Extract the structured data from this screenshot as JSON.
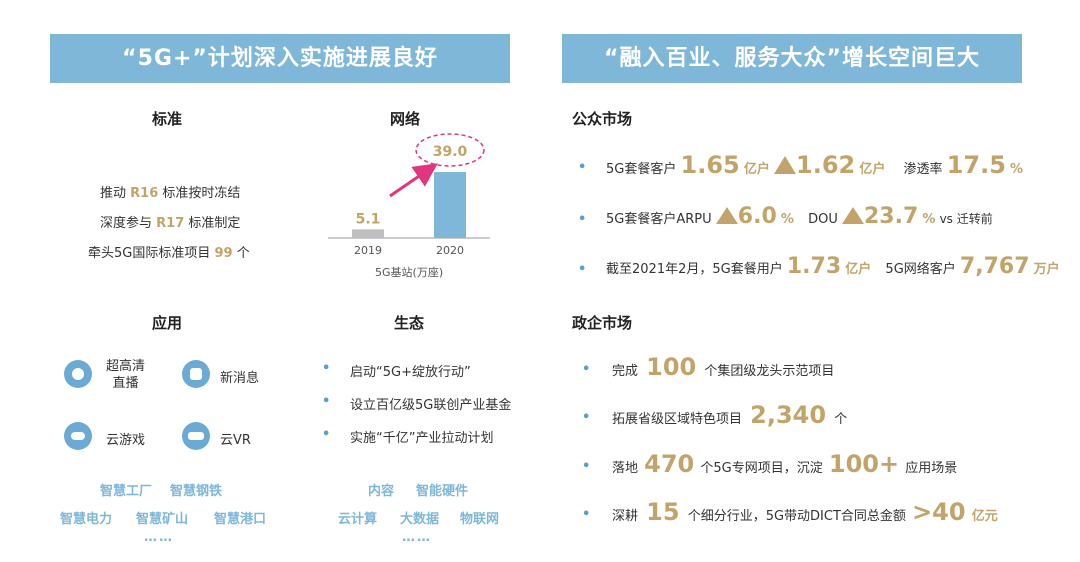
{
  "left_banner": "“5G+”计划深入实施进展良好",
  "right_banner": "“融入百业、服务大众”增长空间巨大",
  "standard": {
    "title": "标准",
    "line1_pre": "推动 ",
    "line1_hl": "R16",
    "line1_post": " 标准按时冻结",
    "line2_pre": "深度参与 ",
    "line2_hl": "R17",
    "line2_post": " 标准制定",
    "line3_pre": "牵头5G国际标准项目 ",
    "line3_hl": "99",
    "line3_post": " 个"
  },
  "network": {
    "title": "网络",
    "xlabel": "5G基站(万座)"
  },
  "chart_data": {
    "type": "bar",
    "categories": [
      "2019",
      "2020"
    ],
    "values": [
      5.1,
      39.0
    ],
    "value_labels": [
      "5.1",
      "39.0"
    ],
    "xlabel": "5G基站(万座)",
    "colors": [
      "#bfbfbf",
      "#7fb7d9"
    ]
  },
  "application": {
    "title": "应用",
    "items": [
      {
        "label1": "超高清",
        "label2": "直播",
        "icon": "live-video-icon"
      },
      {
        "label1": "新消息",
        "label2": "",
        "icon": "message-icon"
      },
      {
        "label1": "云游戏",
        "label2": "",
        "icon": "gamepad-icon"
      },
      {
        "label1": "云VR",
        "label2": "",
        "icon": "vr-headset-icon"
      }
    ],
    "tags_row1": [
      "智慧工厂",
      "智慧钢铁"
    ],
    "tags_row2": [
      "智慧电力",
      "智慧矿山",
      "智慧港口"
    ],
    "more": "……"
  },
  "ecosystem": {
    "title": "生态",
    "items": [
      "启动“5G+绽放行动”",
      "设立百亿级5G联创产业基金",
      "实施“千亿”产业拉动计划"
    ],
    "tags_row1": [
      "内容",
      "智能硬件"
    ],
    "tags_row2": [
      "云计算",
      "大数据",
      "物联网"
    ],
    "more": "……"
  },
  "public_market": {
    "title": "公众市场",
    "r1": {
      "l1": "5G套餐客户",
      "v1": "1.65",
      "u1": "亿户",
      "v2": "1.62",
      "u2": "亿户",
      "l3": "渗透率",
      "v3": "17.5",
      "u3": "%"
    },
    "r2": {
      "l1": "5G套餐客户ARPU",
      "v1": "6.0",
      "u1": "%",
      "l2": "DOU",
      "v2": "23.7",
      "u2": "%",
      "l3": "vs 迁转前"
    },
    "r3": {
      "l1": "截至2021年2月，5G套餐用户",
      "v1": "1.73",
      "u1": "亿户",
      "l2": "5G网络客户",
      "v2": "7,767",
      "u2": "万户"
    }
  },
  "gov_market": {
    "title": "政企市场",
    "r1": {
      "l1": "完成",
      "v1": "100",
      "l2": "个集团级龙头示范项目"
    },
    "r2": {
      "l1": "拓展省级区域特色项目",
      "v1": "2,340",
      "l2": "个"
    },
    "r3": {
      "l1": "落地",
      "v1": "470",
      "l2": "个5G专网项目，沉淀",
      "v2": "100+",
      "l3": "应用场景"
    },
    "r4": {
      "l1": "深耕",
      "v1": "15",
      "l2": "个细分行业，5G带动DICT合同总金额",
      "v2": ">40",
      "u2": "亿元"
    }
  },
  "bullet": "•"
}
